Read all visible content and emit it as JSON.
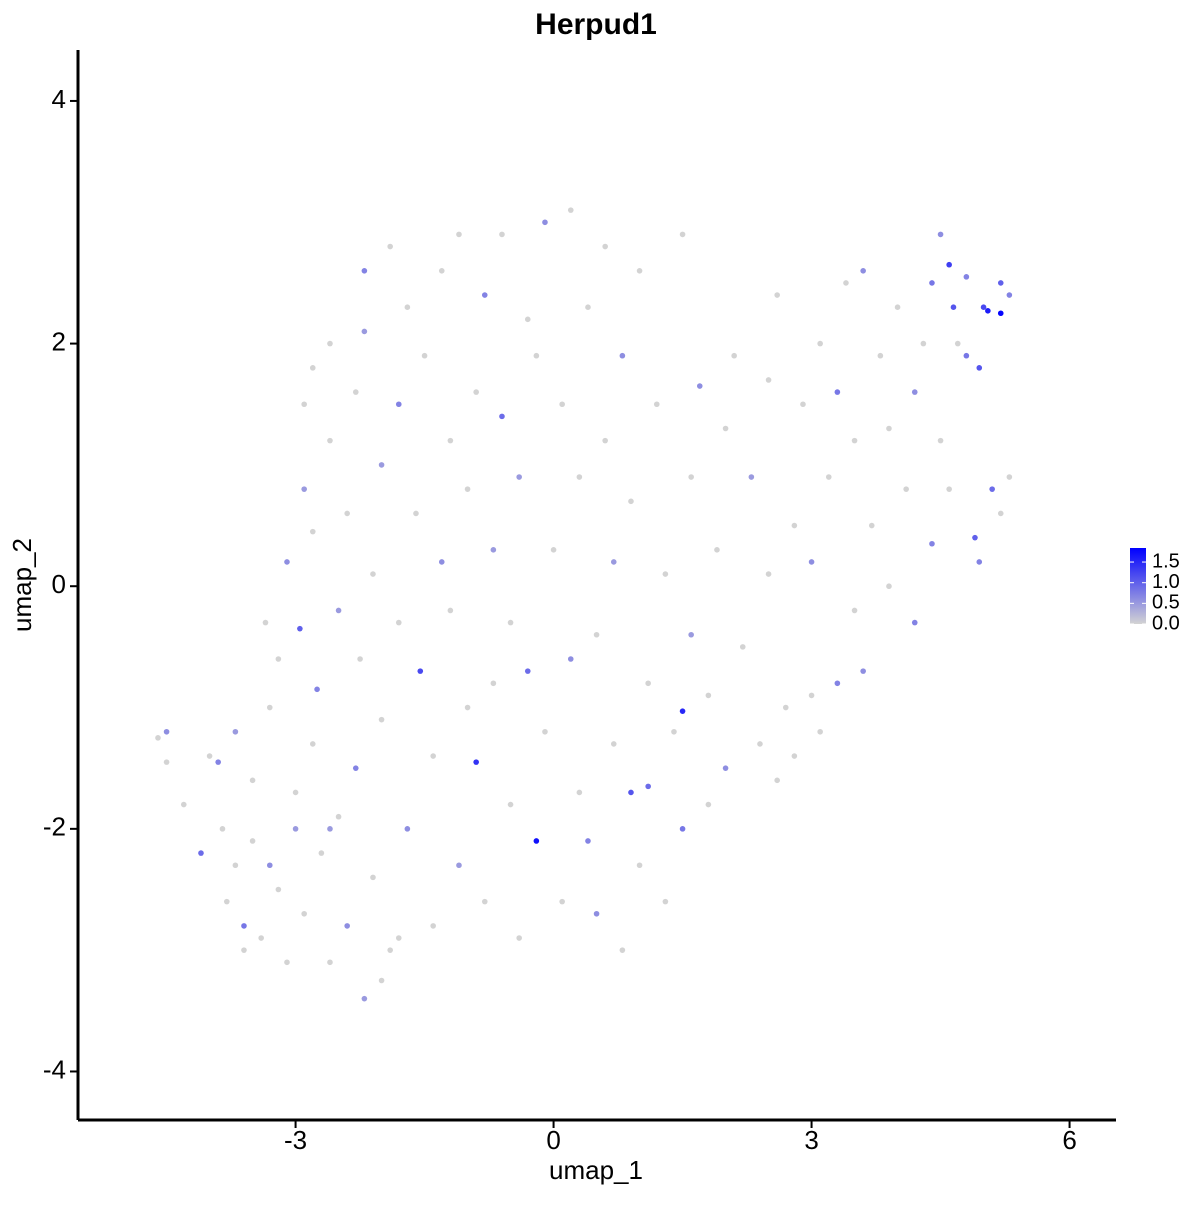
{
  "chart_data": {
    "type": "scatter",
    "title": "Herpud1",
    "x_label": "umap_1",
    "y_label": "umap_2",
    "xlim": [
      -5.53,
      6.54
    ],
    "ylim": [
      -4.4,
      4.42
    ],
    "xticks": [
      -3,
      0,
      3,
      6
    ],
    "yticks": [
      -4,
      -2,
      0,
      2,
      4
    ],
    "low_color": "#d3d3d3",
    "high_color": "#0000ff",
    "colorlim": [
      0,
      1.84
    ],
    "colorticks": [
      {
        "value": 0,
        "label": "0.0"
      },
      {
        "value": 0.5,
        "label": "0.5"
      },
      {
        "value": 1,
        "label": "1.0"
      },
      {
        "value": 1.5,
        "label": "1.5"
      }
    ],
    "x": [
      -4.6,
      -4.5,
      -4.5,
      -4.3,
      -4.1,
      -4.0,
      -3.9,
      -3.85,
      -3.8,
      -3.7,
      -3.7,
      -3.6,
      -3.5,
      -3.5,
      -3.4,
      -3.35,
      -3.3,
      -3.3,
      -3.2,
      -3.2,
      -3.1,
      -3.1,
      -3.0,
      -3.0,
      -2.95,
      -2.9,
      -2.9,
      -2.8,
      -2.8,
      -2.75,
      -2.7,
      -2.6,
      -2.6,
      -2.5,
      -2.5,
      -2.4,
      -2.4,
      -2.3,
      -2.3,
      -2.25,
      -2.2,
      -2.2,
      -2.2,
      -2.1,
      -2.1,
      -2.0,
      -2.0,
      -1.9,
      -1.9,
      -1.8,
      -1.8,
      -1.7,
      -1.7,
      -1.6,
      -1.55,
      -1.5,
      -1.4,
      -1.4,
      -1.3,
      -1.3,
      -1.2,
      -1.2,
      -1.1,
      -1.1,
      -1.0,
      -1.0,
      -0.9,
      -0.9,
      -0.8,
      -0.8,
      -0.7,
      -0.7,
      -0.6,
      -0.6,
      -0.5,
      -0.5,
      -0.4,
      -0.4,
      -0.3,
      -0.3,
      -0.2,
      -0.2,
      -0.1,
      -0.1,
      0,
      0.1,
      0.1,
      0.2,
      0.2,
      0.3,
      0.3,
      0.4,
      0.4,
      0.5,
      0.5,
      0.6,
      0.6,
      0.7,
      0.7,
      0.8,
      0.8,
      0.9,
      0.9,
      1.0,
      1.0,
      1.1,
      1.1,
      1.2,
      1.3,
      1.3,
      1.4,
      1.5,
      1.5,
      1.5,
      1.6,
      1.6,
      1.7,
      1.8,
      1.8,
      1.9,
      2.0,
      2.0,
      2.1,
      2.2,
      2.3,
      2.4,
      2.5,
      2.5,
      2.6,
      2.7,
      2.8,
      2.8,
      2.9,
      3.0,
      3.0,
      3.1,
      3.2,
      3.3,
      3.3,
      3.4,
      3.5,
      3.5,
      3.6,
      3.6,
      3.7,
      3.8,
      3.9,
      3.9,
      4.0,
      4.1,
      4.2,
      4.2,
      4.3,
      4.4,
      4.4,
      4.5,
      4.5,
      4.6,
      4.6,
      4.65,
      4.7,
      4.8,
      4.8,
      4.9,
      4.95,
      5.0,
      5.05,
      5.1,
      5.2,
      5.2,
      5.3,
      5.3,
      5.2,
      4.95,
      3.1,
      2.6,
      -3.6,
      -2.0,
      -2.6,
      -1.8,
      -2.9,
      -2.6,
      -2.8
    ],
    "values": [
      -1.25,
      -1.2,
      -1.45,
      -1.8,
      -2.2,
      -1.4,
      -1.45,
      -2.0,
      -2.6,
      -1.2,
      -2.3,
      -2.8,
      -2.1,
      -1.6,
      -2.9,
      -0.3,
      -2.3,
      -1.0,
      -2.5,
      -0.6,
      -3.1,
      0.2,
      -1.7,
      -2.0,
      -0.35,
      0.8,
      -2.7,
      -1.3,
      0.45,
      -0.85,
      -2.2,
      1.2,
      -3.1,
      -0.2,
      -1.9,
      0.6,
      -2.8,
      1.6,
      -1.5,
      -0.6,
      2.1,
      -3.4,
      2.6,
      0.1,
      -2.4,
      1.0,
      -1.1,
      2.8,
      -3.0,
      1.5,
      -0.3,
      -2.0,
      2.3,
      0.6,
      -0.7,
      1.9,
      -2.8,
      -1.4,
      2.6,
      0.2,
      -0.2,
      1.2,
      -2.3,
      2.9,
      0.8,
      -1.0,
      -1.45,
      1.6,
      2.4,
      -2.6,
      0.3,
      -0.8,
      2.9,
      1.4,
      -1.8,
      -0.3,
      -2.9,
      0.9,
      2.2,
      -0.7,
      -2.1,
      1.9,
      3.0,
      -1.2,
      0.3,
      -2.6,
      1.5,
      3.1,
      -0.6,
      -1.7,
      0.9,
      2.3,
      -2.1,
      -2.7,
      -0.4,
      1.2,
      2.8,
      -1.3,
      0.2,
      -3.0,
      1.9,
      -1.7,
      0.7,
      2.6,
      -2.3,
      -0.8,
      -1.65,
      1.5,
      -2.6,
      0.1,
      -1.2,
      -1.03,
      -2.0,
      2.9,
      0.9,
      -0.4,
      1.65,
      -1.8,
      -0.9,
      0.3,
      1.3,
      -1.5,
      1.9,
      -0.5,
      0.9,
      -1.3,
      1.7,
      0.1,
      2.4,
      -1.0,
      0.5,
      -1.4,
      1.5,
      0.2,
      -0.9,
      2.0,
      0.9,
      -0.8,
      1.6,
      2.5,
      -0.2,
      1.2,
      2.6,
      -0.7,
      0.5,
      1.9,
      0,
      1.3,
      2.3,
      0.8,
      -0.3,
      1.6,
      2.0,
      0.35,
      2.5,
      2.9,
      1.2,
      2.65,
      0.8,
      2.3,
      2.0,
      1.9,
      2.55,
      0.4,
      1.8,
      2.3,
      2.27,
      0.8,
      2.25,
      2.5,
      2.4,
      0.9,
      0.6,
      0.2,
      -1.2,
      -1.6,
      -3.0,
      -3.25,
      -2.0,
      -2.9,
      1.5,
      2.0,
      1.8
    ],
    "expression": [
      0,
      0.6,
      0,
      0,
      0.9,
      0,
      0.7,
      0,
      0,
      0.5,
      0,
      0.8,
      0,
      0,
      0,
      0,
      0.6,
      0,
      0,
      0,
      0,
      0.6,
      0,
      0.5,
      1.0,
      0.5,
      0,
      0,
      0,
      0.7,
      0,
      0,
      0,
      0.5,
      0,
      0,
      0.6,
      0,
      0.7,
      0,
      0.5,
      0.5,
      0.7,
      0,
      0,
      0.5,
      0,
      0,
      0,
      0.7,
      0,
      0.6,
      0,
      0,
      1.2,
      0,
      0,
      0,
      0,
      0.6,
      0,
      0,
      0.5,
      0,
      0,
      0,
      1.4,
      0,
      0.7,
      0,
      0.5,
      0,
      0,
      0.9,
      0,
      0,
      0,
      0.5,
      0,
      0.9,
      1.7,
      0,
      0.6,
      0,
      0,
      0,
      0,
      0,
      0.6,
      0,
      0,
      0,
      0.7,
      0.6,
      0,
      0,
      0,
      0,
      0.5,
      0,
      0.6,
      1.1,
      0,
      0,
      0,
      0,
      0.9,
      0,
      0,
      0,
      0,
      1.5,
      0.8,
      0,
      0,
      0.5,
      0.6,
      0,
      0,
      0,
      0,
      0.6,
      0,
      0,
      0.5,
      0,
      0,
      0,
      0,
      0,
      0,
      0,
      0,
      0.6,
      0,
      0,
      0,
      0.7,
      0.8,
      0,
      0,
      0,
      0.6,
      0.6,
      0,
      0,
      0,
      0,
      0,
      0,
      0.7,
      0.6,
      0,
      0.7,
      0.8,
      0.6,
      0,
      1.3,
      0,
      1.1,
      0,
      0.8,
      0.7,
      1.0,
      1.1,
      1.2,
      1.6,
      0.9,
      1.8,
      1.0,
      0.7,
      0,
      0,
      0.7,
      0,
      0,
      0,
      0,
      0.5,
      0,
      0,
      0,
      0
    ]
  }
}
